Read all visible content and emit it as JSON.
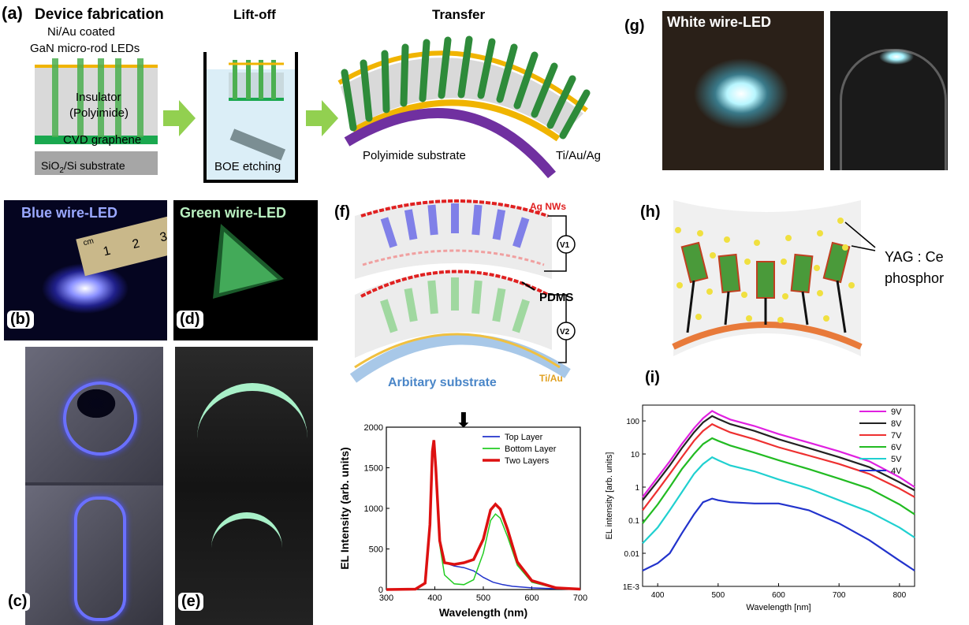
{
  "panel_a": {
    "label": "(a)",
    "step1_title": "Device fabrication",
    "step2_title": "Lift-off",
    "step3_title": "Transfer",
    "ni_au": "Ni/Au coated",
    "gan_leds": "GaN micro-rod LEDs",
    "insulator": "Insulator",
    "polyimide": "(Polyimide)",
    "cvd": "CVD graphene",
    "sio2_pre": "SiO",
    "sio2_sub": "2",
    "sio2_post": "/Si substrate",
    "boe": "BOE etching",
    "pi_substrate": "Polyimide substrate",
    "tiauag": "Ti/Au/Ag"
  },
  "panel_b": {
    "label": "(b)",
    "title": "Blue wire-LED",
    "ruler_unit": "cm",
    "ruler_ticks": [
      "1",
      "2",
      "3"
    ]
  },
  "panel_c": {
    "label": "(c)"
  },
  "panel_d": {
    "label": "(d)",
    "title": "Green wire-LED"
  },
  "panel_e": {
    "label": "(e)"
  },
  "panel_f": {
    "label": "(f)",
    "ag_nws": "Ag NWs",
    "v1": "V1",
    "v2": "V2",
    "pdms": "PDMS",
    "substrate": "Arbitary substrate",
    "tiau": "Ti/Au"
  },
  "panel_g": {
    "label": "(g)",
    "title": "White wire-LED"
  },
  "panel_h": {
    "label": "(h)",
    "phosphor_1": "YAG : Ce",
    "phosphor_2": "phosphor"
  },
  "panel_i": {
    "label": "(i)"
  },
  "chart_data": [
    {
      "type": "line",
      "xlabel": "Wavelength (nm)",
      "ylabel": "EL Intensity (arb. units)",
      "xlim": [
        300,
        700
      ],
      "ylim": [
        0,
        2000
      ],
      "x_ticks": [
        300,
        400,
        500,
        600,
        700
      ],
      "y_ticks": [
        0,
        500,
        1000,
        1500,
        2000
      ],
      "legend_position": "top-right",
      "series": [
        {
          "name": "Top Layer",
          "color": "#2233cc",
          "x": [
            300,
            360,
            380,
            390,
            395,
            398,
            402,
            410,
            420,
            440,
            460,
            480,
            500,
            520,
            540,
            560,
            600,
            650,
            700
          ],
          "y": [
            0,
            5,
            80,
            800,
            1700,
            1840,
            1500,
            600,
            330,
            290,
            270,
            230,
            150,
            90,
            60,
            40,
            20,
            10,
            5
          ]
        },
        {
          "name": "Bottom Layer",
          "color": "#22cc22",
          "x": [
            300,
            360,
            380,
            390,
            395,
            398,
            402,
            410,
            420,
            440,
            460,
            480,
            500,
            515,
            525,
            535,
            550,
            570,
            600,
            650,
            700
          ],
          "y": [
            0,
            5,
            80,
            800,
            1700,
            1840,
            1500,
            550,
            180,
            70,
            60,
            120,
            450,
            850,
            930,
            880,
            650,
            300,
            90,
            15,
            5
          ]
        },
        {
          "name": "Two Layers",
          "color": "#dd1111",
          "x": [
            300,
            360,
            380,
            390,
            395,
            398,
            402,
            410,
            420,
            440,
            460,
            480,
            500,
            515,
            525,
            535,
            550,
            570,
            600,
            650,
            700
          ],
          "y": [
            0,
            5,
            80,
            800,
            1700,
            1840,
            1500,
            600,
            330,
            310,
            330,
            370,
            620,
            980,
            1050,
            990,
            740,
            340,
            110,
            20,
            5
          ]
        }
      ]
    },
    {
      "type": "line",
      "xlabel": "Wavelength [nm]",
      "ylabel": "EL intensity [arb. units]",
      "xlim": [
        375,
        825
      ],
      "ylim": [
        0.001,
        300
      ],
      "y_scale": "log",
      "x_ticks": [
        400,
        500,
        600,
        700,
        800
      ],
      "y_tick_labels": [
        "1E-3",
        "0.01",
        "0.1",
        "1",
        "10",
        "100"
      ],
      "legend_position": "top-right",
      "x": [
        375,
        400,
        420,
        440,
        460,
        475,
        490,
        500,
        520,
        560,
        600,
        650,
        700,
        750,
        800,
        825
      ],
      "series": [
        {
          "name": "9V",
          "color": "#e020e0",
          "y": [
            0.5,
            2,
            6,
            20,
            60,
            120,
            200,
            160,
            110,
            70,
            40,
            22,
            12,
            6,
            2,
            1
          ]
        },
        {
          "name": "8V",
          "color": "#222222",
          "y": [
            0.4,
            1.5,
            4.5,
            15,
            45,
            90,
            140,
            115,
            80,
            50,
            28,
            15,
            8,
            4,
            1.4,
            0.8
          ]
        },
        {
          "name": "7V",
          "color": "#ee3030",
          "y": [
            0.2,
            0.8,
            2.5,
            8,
            25,
            50,
            80,
            65,
            45,
            28,
            16,
            9,
            5,
            2.5,
            0.9,
            0.5
          ]
        },
        {
          "name": "6V",
          "color": "#22bb22",
          "y": [
            0.08,
            0.3,
            1,
            3.5,
            10,
            20,
            30,
            25,
            18,
            11,
            6.5,
            3.5,
            1.8,
            0.9,
            0.3,
            0.15
          ]
        },
        {
          "name": "5V",
          "color": "#20d0d0",
          "y": [
            0.02,
            0.06,
            0.2,
            0.7,
            2.5,
            5,
            8,
            6.5,
            4.5,
            3,
            1.7,
            0.9,
            0.4,
            0.18,
            0.06,
            0.03
          ]
        },
        {
          "name": "4V",
          "color": "#2233cc",
          "y": [
            0.003,
            0.005,
            0.01,
            0.04,
            0.15,
            0.35,
            0.45,
            0.4,
            0.35,
            0.32,
            0.32,
            0.2,
            0.08,
            0.025,
            0.006,
            0.003
          ]
        }
      ]
    }
  ]
}
